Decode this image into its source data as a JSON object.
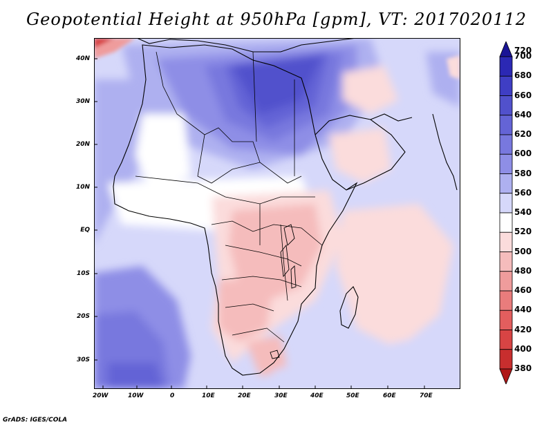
{
  "title": "Geopotential Height at 950hPa [gpm], VT: 2017020112",
  "credit": "GrADS: IGES/COLA",
  "lon_ticks": [
    "20W",
    "10W",
    "0",
    "10E",
    "20E",
    "30E",
    "40E",
    "50E",
    "60E",
    "70E"
  ],
  "lat_ticks": [
    "40N",
    "30N",
    "20N",
    "10N",
    "EQ",
    "10S",
    "20S",
    "30S"
  ],
  "colorbar": {
    "levels": [
      "720",
      "700",
      "680",
      "660",
      "640",
      "620",
      "600",
      "580",
      "560",
      "540",
      "520",
      "500",
      "480",
      "460",
      "440",
      "420",
      "400",
      "380"
    ],
    "colors": [
      "#1a1496",
      "#2b28b4",
      "#3f3ec4",
      "#5151cc",
      "#6464d6",
      "#7878de",
      "#8e8ee6",
      "#aeb0f0",
      "#d6d8fa",
      "#ffffff",
      "#fbdcdc",
      "#f5bcbc",
      "#ef9c9c",
      "#e97c7c",
      "#e35e5e",
      "#d84444",
      "#c82e2e",
      "#b01818"
    ]
  }
}
